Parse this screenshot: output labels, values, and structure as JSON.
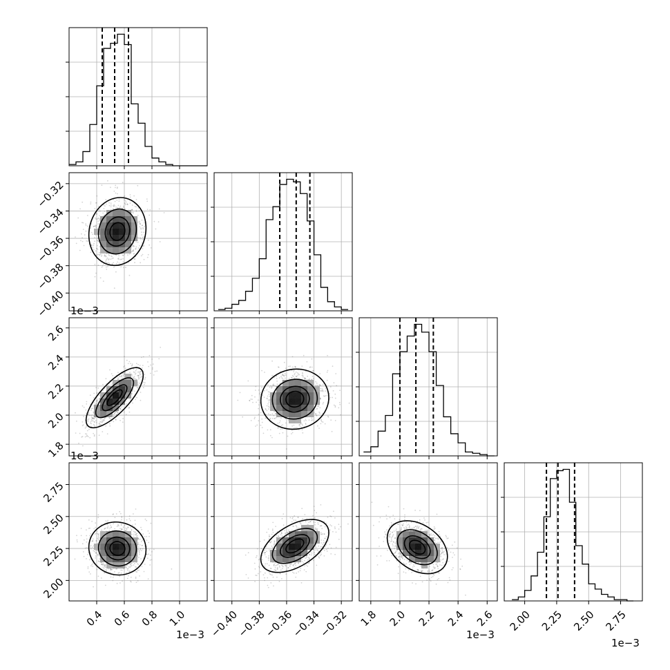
{
  "chart_data": {
    "type": "corner",
    "title": "",
    "grid": true,
    "parameters": [
      {
        "index": 0,
        "range": [
          0.2,
          1.2
        ],
        "ticks": [
          0.4,
          0.6,
          0.8,
          1.0
        ],
        "tick_labels": [
          "0.4",
          "0.6",
          "0.8",
          "1.0"
        ],
        "offset_text": "1e−3",
        "quantiles": [
          0.44,
          0.53,
          0.63
        ]
      },
      {
        "index": 1,
        "range": [
          -0.413,
          -0.312
        ],
        "ticks": [
          -0.4,
          -0.38,
          -0.36,
          -0.34,
          -0.32
        ],
        "tick_labels": [
          "−0.40",
          "−0.38",
          "−0.36",
          "−0.34",
          "−0.32"
        ],
        "offset_text": "",
        "quantiles": [
          -0.365,
          -0.353,
          -0.343
        ]
      },
      {
        "index": 2,
        "range": [
          1.72,
          2.67
        ],
        "ticks": [
          1.8,
          2.0,
          2.2,
          2.4,
          2.6
        ],
        "tick_labels": [
          "1.8",
          "2.0",
          "2.2",
          "2.4",
          "2.6"
        ],
        "offset_text": "1e−3",
        "quantiles": [
          2.0,
          2.11,
          2.23
        ]
      },
      {
        "index": 3,
        "range": [
          1.84,
          2.92
        ],
        "ticks": [
          2.0,
          2.25,
          2.5,
          2.75
        ],
        "tick_labels": [
          "2.00",
          "2.25",
          "2.50",
          "2.75"
        ],
        "offset_text": "1e−3",
        "quantiles": [
          2.17,
          2.26,
          2.39
        ]
      }
    ],
    "histograms": [
      {
        "param": 0,
        "bin_edges": [
          0.2,
          0.25,
          0.3,
          0.35,
          0.4,
          0.45,
          0.5,
          0.55,
          0.6,
          0.65,
          0.7,
          0.75,
          0.8,
          0.85,
          0.9,
          0.95,
          1.0,
          1.05,
          1.1,
          1.15,
          1.2
        ],
        "counts": [
          1,
          3,
          11,
          32,
          62,
          91,
          95,
          102,
          94,
          48,
          33,
          15,
          6,
          3,
          1,
          0,
          0,
          0,
          0,
          0
        ]
      },
      {
        "param": 1,
        "bin_edges": [
          -0.41,
          -0.405,
          -0.4,
          -0.395,
          -0.39,
          -0.385,
          -0.38,
          -0.375,
          -0.37,
          -0.365,
          -0.36,
          -0.355,
          -0.35,
          -0.345,
          -0.34,
          -0.335,
          -0.33,
          -0.325,
          -0.32,
          -0.315
        ],
        "counts": [
          1,
          2,
          5,
          8,
          15,
          25,
          40,
          70,
          80,
          97,
          101,
          99,
          90,
          69,
          43,
          18,
          7,
          3,
          1
        ]
      },
      {
        "param": 2,
        "bin_edges": [
          1.75,
          1.8,
          1.85,
          1.9,
          1.95,
          2.0,
          2.05,
          2.1,
          2.15,
          2.2,
          2.25,
          2.3,
          2.35,
          2.4,
          2.45,
          2.5,
          2.55,
          2.6,
          2.65
        ],
        "counts": [
          3,
          7,
          19,
          31,
          63,
          80,
          92,
          101,
          95,
          80,
          54,
          30,
          17,
          10,
          3,
          2,
          1,
          0
        ]
      },
      {
        "param": 3,
        "bin_edges": [
          1.9,
          1.95,
          2.0,
          2.05,
          2.1,
          2.15,
          2.2,
          2.25,
          2.3,
          2.35,
          2.4,
          2.45,
          2.5,
          2.55,
          2.6,
          2.65,
          2.7,
          2.75,
          2.8,
          2.85
        ],
        "counts": [
          1,
          3,
          8,
          19,
          37,
          64,
          93,
          99,
          100,
          75,
          42,
          28,
          13,
          9,
          5,
          3,
          1,
          1,
          0
        ]
      }
    ],
    "pairs": [
      {
        "x_param": 0,
        "y_param": 1,
        "mean": [
          0.55,
          -0.355
        ],
        "sd": [
          0.1,
          0.012
        ],
        "rho": 0.1
      },
      {
        "x_param": 0,
        "y_param": 2,
        "mean": [
          0.53,
          2.12
        ],
        "sd": [
          0.1,
          0.1
        ],
        "rho": 0.75
      },
      {
        "x_param": 1,
        "y_param": 2,
        "mean": [
          -0.354,
          2.11
        ],
        "sd": [
          0.012,
          0.1
        ],
        "rho": 0.05
      },
      {
        "x_param": 0,
        "y_param": 3,
        "mean": [
          0.55,
          2.25
        ],
        "sd": [
          0.1,
          0.1
        ],
        "rho": -0.05
      },
      {
        "x_param": 1,
        "y_param": 3,
        "mean": [
          -0.354,
          2.27
        ],
        "sd": [
          0.012,
          0.1
        ],
        "rho": 0.5
      },
      {
        "x_param": 2,
        "y_param": 3,
        "mean": [
          2.12,
          2.26
        ],
        "sd": [
          0.1,
          0.1
        ],
        "rho": -0.35
      }
    ],
    "contour_levels_sigma": [
      0.5,
      1.0,
      1.5,
      2.0
    ]
  }
}
